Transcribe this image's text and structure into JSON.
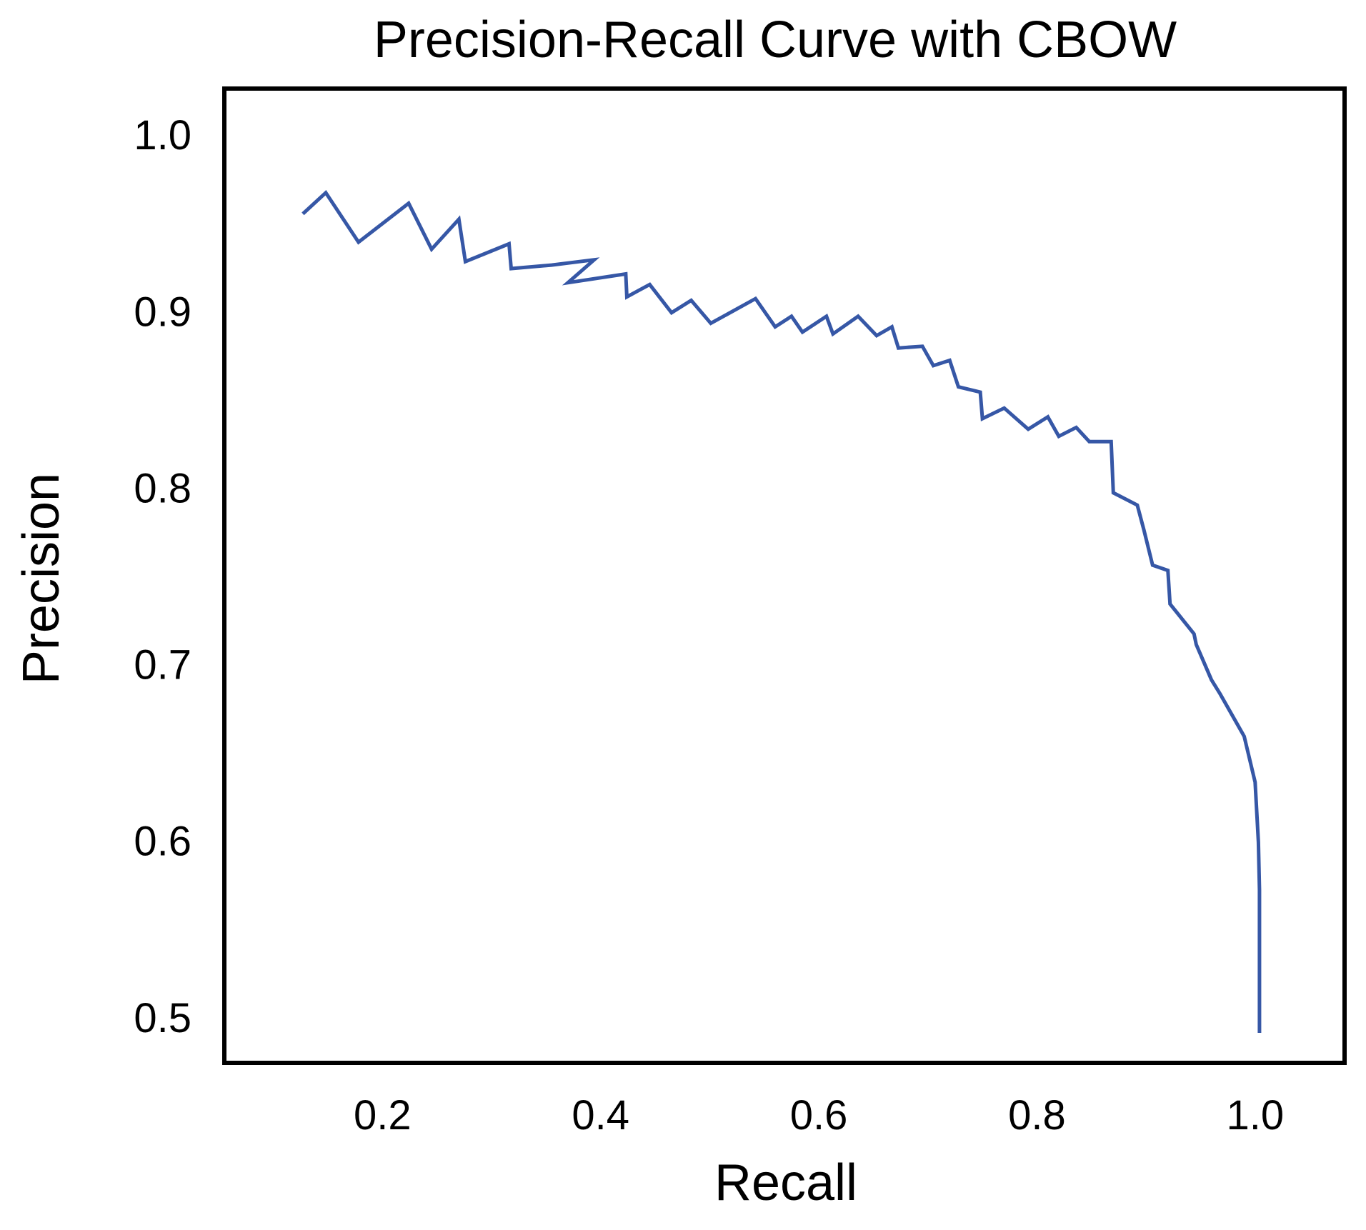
{
  "chart_data": {
    "type": "line",
    "title": "Precision-Recall Curve with CBOW",
    "xlabel": "Recall",
    "ylabel": "Precision",
    "xlim": [
      0.055,
      1.082
    ],
    "ylim": [
      0.474,
      1.026
    ],
    "xticks": [
      {
        "value": 0.2,
        "label": "0.2"
      },
      {
        "value": 0.4,
        "label": "0.4"
      },
      {
        "value": 0.6,
        "label": "0.6"
      },
      {
        "value": 0.8,
        "label": "0.8"
      },
      {
        "value": 1.0,
        "label": "1.0"
      }
    ],
    "yticks": [
      {
        "value": 0.5,
        "label": "0.5"
      },
      {
        "value": 0.6,
        "label": "0.6"
      },
      {
        "value": 0.7,
        "label": "0.7"
      },
      {
        "value": 0.8,
        "label": "0.8"
      },
      {
        "value": 0.9,
        "label": "0.9"
      },
      {
        "value": 1.0,
        "label": "1.0"
      }
    ],
    "grid": false,
    "series": [
      {
        "name": "CBOW",
        "color": "#3657a6",
        "x": [
          0.127,
          0.148,
          0.178,
          0.224,
          0.245,
          0.27,
          0.276,
          0.316,
          0.318,
          0.355,
          0.394,
          0.37,
          0.423,
          0.424,
          0.445,
          0.465,
          0.483,
          0.501,
          0.542,
          0.56,
          0.575,
          0.585,
          0.607,
          0.613,
          0.636,
          0.653,
          0.667,
          0.673,
          0.695,
          0.705,
          0.72,
          0.728,
          0.748,
          0.75,
          0.77,
          0.792,
          0.81,
          0.82,
          0.836,
          0.848,
          0.868,
          0.87,
          0.892,
          0.898,
          0.906,
          0.92,
          0.922,
          0.944,
          0.946,
          0.96,
          0.968,
          0.99,
          1.0,
          1.003,
          1.004,
          1.004,
          1.004
        ],
        "y": [
          0.955,
          0.967,
          0.939,
          0.961,
          0.935,
          0.952,
          0.928,
          0.938,
          0.924,
          0.926,
          0.929,
          0.916,
          0.921,
          0.908,
          0.915,
          0.899,
          0.906,
          0.893,
          0.907,
          0.891,
          0.897,
          0.888,
          0.897,
          0.887,
          0.897,
          0.886,
          0.891,
          0.879,
          0.88,
          0.869,
          0.872,
          0.857,
          0.854,
          0.839,
          0.845,
          0.833,
          0.84,
          0.829,
          0.834,
          0.826,
          0.826,
          0.797,
          0.79,
          0.776,
          0.756,
          0.753,
          0.734,
          0.717,
          0.711,
          0.691,
          0.683,
          0.659,
          0.633,
          0.599,
          0.572,
          0.54,
          0.491
        ]
      }
    ]
  }
}
